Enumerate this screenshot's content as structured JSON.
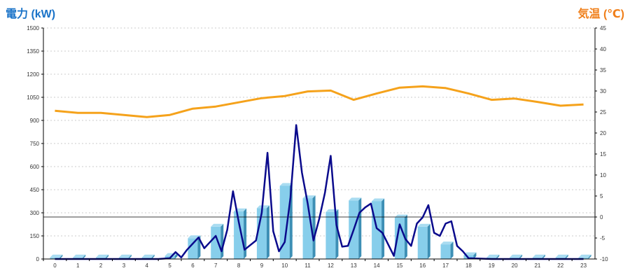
{
  "labels": {
    "left_axis_title": "電力 (kW)",
    "right_axis_title": "気温 (℃)"
  },
  "colors": {
    "bar_face": "#87ceeb",
    "bar_side": "#3d8fb5",
    "power_line": "#0a0a8c",
    "temp_line": "#f5a21b",
    "grid": "#bbbbbb",
    "axis": "#000000"
  },
  "chart_data": {
    "type": "bar+line",
    "left_axis": {
      "ylim": [
        0,
        1500
      ],
      "ticks": [
        "0",
        "150",
        "300",
        "450",
        "600",
        "750",
        "900",
        "1050",
        "1200",
        "1350",
        "1500"
      ]
    },
    "right_axis": {
      "ylim": [
        -10,
        45
      ],
      "ticks": [
        "-10",
        "-5",
        "0",
        "5",
        "10",
        "15",
        "20",
        "25",
        "30",
        "35",
        "40",
        "45"
      ]
    },
    "categories": [
      "0",
      "1",
      "2",
      "3",
      "4",
      "5",
      "6",
      "7",
      "8",
      "9",
      "10",
      "11",
      "12",
      "13",
      "14",
      "15",
      "16",
      "17",
      "18",
      "19",
      "20",
      "21",
      "22",
      "23"
    ],
    "bars": {
      "axis": "left",
      "values": [
        10,
        10,
        10,
        10,
        10,
        20,
        135,
        210,
        310,
        330,
        475,
        395,
        305,
        380,
        375,
        270,
        210,
        95,
        25,
        10,
        10,
        10,
        10,
        10
      ]
    },
    "power_line": {
      "axis": "left",
      "x": [
        0,
        1,
        2,
        3,
        4,
        4.5,
        5,
        5.25,
        5.5,
        5.75,
        6,
        6.25,
        6.5,
        6.75,
        7,
        7.25,
        7.5,
        7.75,
        8,
        8.25,
        8.5,
        8.75,
        9,
        9.25,
        9.5,
        9.75,
        10,
        10.25,
        10.5,
        10.75,
        11,
        11.25,
        11.5,
        11.75,
        12,
        12.25,
        12.5,
        12.75,
        13,
        13.25,
        13.5,
        13.75,
        14,
        14.25,
        14.5,
        14.75,
        15,
        15.25,
        15.5,
        15.75,
        16,
        16.25,
        16.5,
        16.75,
        17,
        17.25,
        17.5,
        17.75,
        18,
        19,
        20,
        21,
        22,
        23
      ],
      "values": [
        0,
        0,
        0,
        0,
        0,
        0,
        5,
        45,
        10,
        60,
        100,
        140,
        70,
        110,
        150,
        50,
        190,
        440,
        240,
        60,
        90,
        120,
        300,
        690,
        180,
        50,
        110,
        400,
        870,
        560,
        360,
        120,
        260,
        430,
        670,
        220,
        80,
        85,
        190,
        300,
        335,
        360,
        200,
        170,
        95,
        20,
        225,
        130,
        85,
        230,
        270,
        350,
        170,
        150,
        230,
        245,
        85,
        50,
        5,
        0,
        0,
        0,
        0,
        0
      ]
    },
    "temp_line": {
      "axis": "right",
      "values": [
        25.3,
        24.8,
        24.8,
        24.3,
        23.8,
        24.3,
        25.8,
        26.3,
        27.3,
        28.3,
        28.8,
        29.9,
        30.1,
        27.9,
        29.4,
        30.8,
        31.1,
        30.7,
        29.4,
        27.9,
        28.2,
        27.4,
        26.5,
        26.8
      ]
    }
  }
}
